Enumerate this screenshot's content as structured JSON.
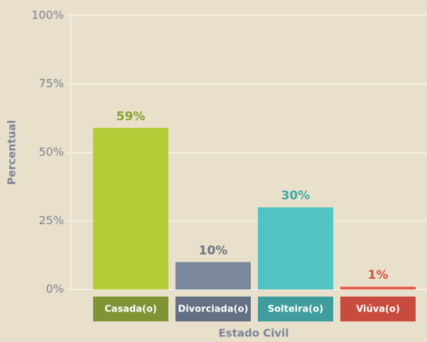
{
  "chart_data": {
    "type": "bar",
    "x_label": "Estado Civil",
    "y_label": "Percentual",
    "categories": [
      "Casada(o)",
      "Divorciada(o)",
      "Solteira(o)",
      "Viúva(o)"
    ],
    "values": [
      59,
      10,
      30,
      1
    ],
    "value_labels": [
      "59%",
      "10%",
      "30%",
      "1%"
    ],
    "colors": [
      "#b2cd35",
      "#7b879c",
      "#53c3c3",
      "#e55b4c"
    ],
    "category_box_colors": [
      "#7f9535",
      "#636f82",
      "#409d9d",
      "#c94b3e"
    ],
    "value_label_colors": [
      "#86a12e",
      "#6b7486",
      "#3fa8a8",
      "#d4503f"
    ],
    "ylim": [
      0,
      100
    ],
    "yticks": [
      {
        "value": 0,
        "label": "0%"
      },
      {
        "value": 25,
        "label": "25%"
      },
      {
        "value": 50,
        "label": "50%"
      },
      {
        "value": 75,
        "label": "75%"
      },
      {
        "value": 100,
        "label": "100%"
      }
    ],
    "grid": true
  }
}
